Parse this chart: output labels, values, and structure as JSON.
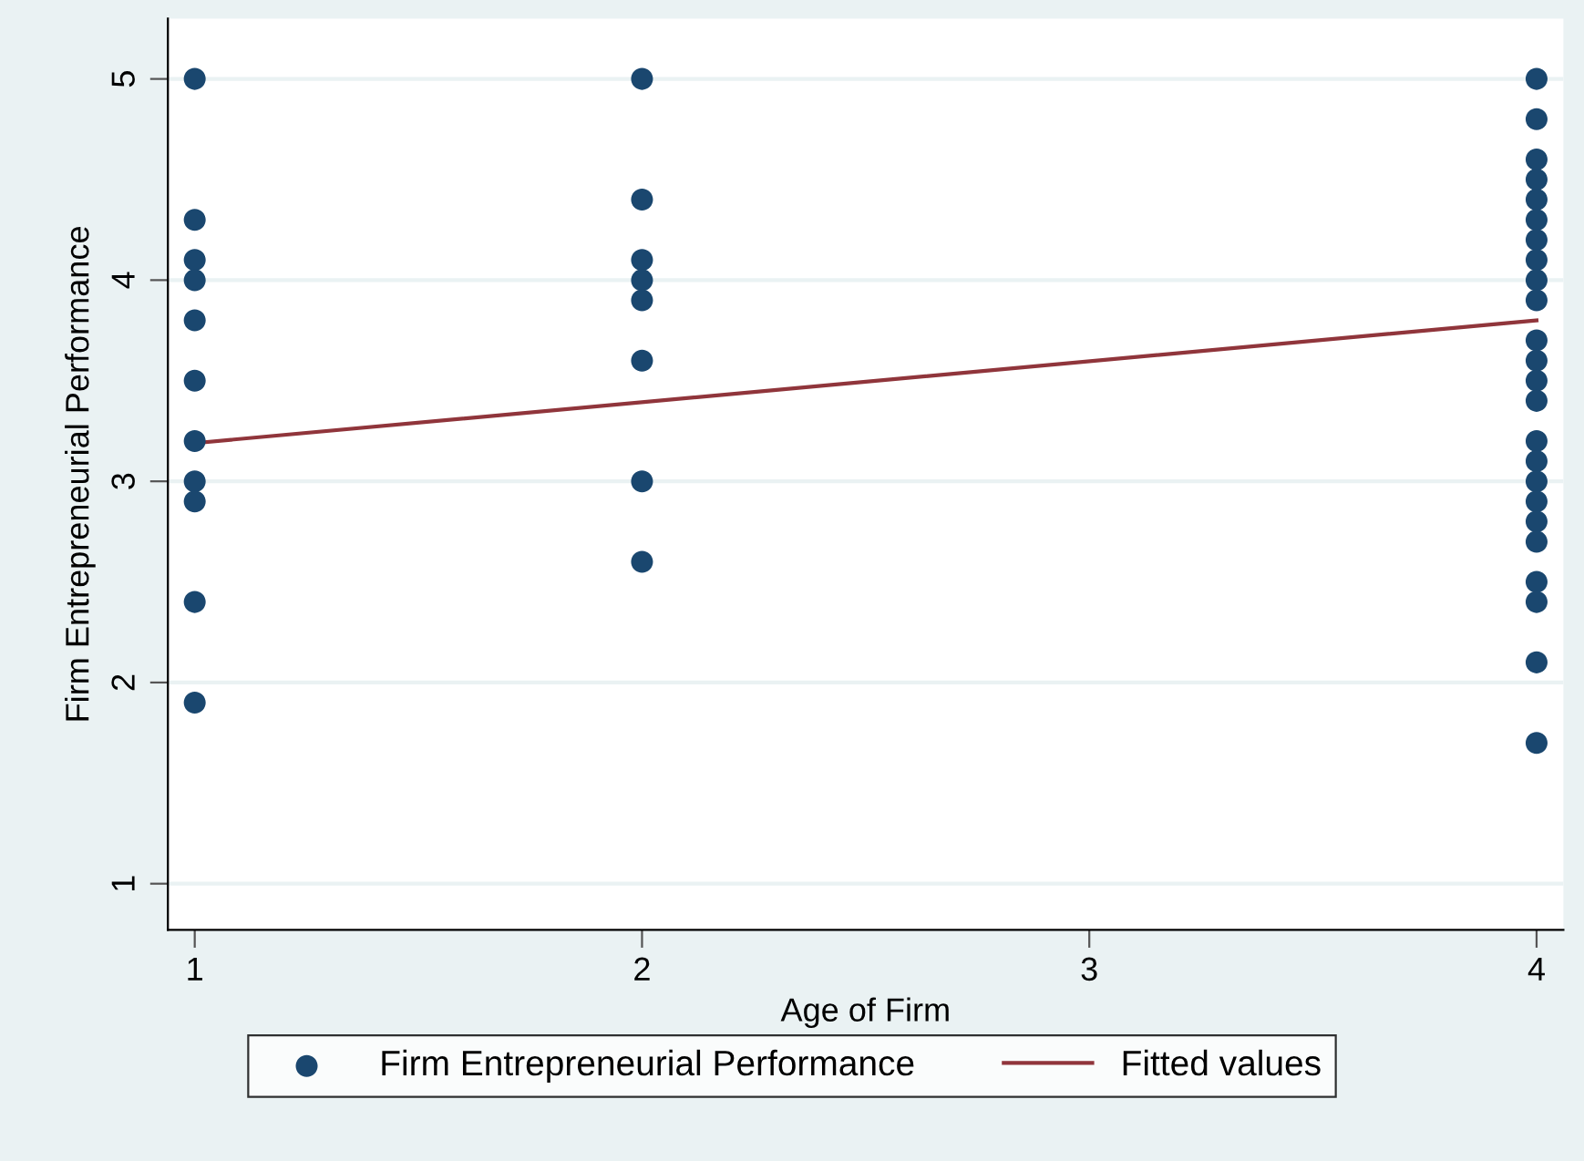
{
  "chart_data": {
    "type": "scatter",
    "xlabel": "Age of Firm",
    "ylabel": "Firm Entrepreneurial Performance",
    "xlim": [
      0.94,
      4.06
    ],
    "xticks": [
      1,
      2,
      3,
      4
    ],
    "ylim": [
      0.77,
      5.3
    ],
    "yticks": [
      1,
      2,
      3,
      4,
      5
    ],
    "grid": "y",
    "legend": "bottom",
    "series": [
      {
        "name": "Firm Entrepreneurial Performance",
        "marker": "circle",
        "color": "#1a476f",
        "x": [
          1,
          1,
          1,
          1,
          1,
          1,
          1,
          1,
          1,
          1,
          1,
          2,
          2,
          2,
          2,
          2,
          2,
          2,
          2,
          4,
          4,
          4,
          4,
          4,
          4,
          4,
          4,
          4,
          4,
          4,
          4,
          4,
          4,
          4,
          4,
          4,
          4,
          4,
          4,
          4,
          4,
          4,
          4
        ],
        "values": [
          5,
          4.3,
          4.1,
          4.0,
          3.8,
          3.5,
          3.2,
          3.0,
          2.9,
          2.4,
          1.9,
          5,
          4.4,
          4.1,
          4.0,
          3.9,
          3.6,
          3.0,
          2.6,
          5,
          4.8,
          4.6,
          4.5,
          4.4,
          4.3,
          4.2,
          4.1,
          4.0,
          3.9,
          3.7,
          3.6,
          3.5,
          3.4,
          3.2,
          3.1,
          3.0,
          2.9,
          2.8,
          2.7,
          2.5,
          2.4,
          2.1,
          1.7
        ]
      },
      {
        "name": "Fitted values",
        "type": "line",
        "color": "#90353b",
        "x": [
          1,
          4
        ],
        "values": [
          3.19,
          3.8
        ]
      }
    ]
  }
}
